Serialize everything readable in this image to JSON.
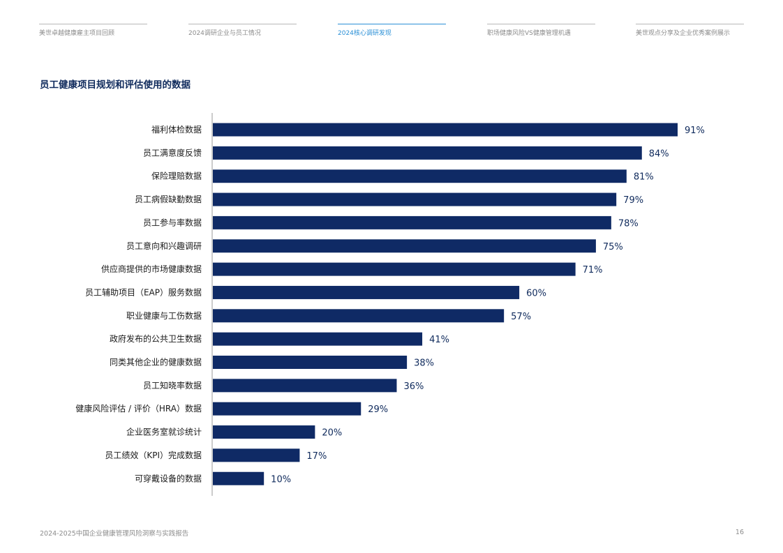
{
  "nav": {
    "tabs": [
      {
        "label": "美世卓越健康雇主项目回顾",
        "active": false
      },
      {
        "label": "2024调研企业与员工情况",
        "active": false
      },
      {
        "label": "2024核心调研发现",
        "active": true
      },
      {
        "label": "职场健康风险VS健康管理机遇",
        "active": false
      },
      {
        "label": "美世观点分享及企业优秀案例展示",
        "active": false
      }
    ]
  },
  "page": {
    "title": "员工健康项目规划和评估使用的数据",
    "footer": "2024-2025中国企业健康管理风险洞察与实践报告",
    "page_number": "16"
  },
  "colors": {
    "bar": "#0f2a65",
    "title": "#0f2a5c",
    "active_tab": "#2a8fd6",
    "muted_text": "#8c8c8c"
  },
  "chart_data": {
    "type": "bar",
    "orientation": "horizontal",
    "title": "员工健康项目规划和评估使用的数据",
    "categories": [
      "福利体检数据",
      "员工满意度反馈",
      "保险理赔数据",
      "员工病假缺勤数据",
      "员工参与率数据",
      "员工意向和兴趣调研",
      "供应商提供的市场健康数据",
      "员工辅助项目（EAP）服务数据",
      "职业健康与工伤数据",
      "政府发布的公共卫生数据",
      "同类其他企业的健康数据",
      "员工知晓率数据",
      "健康风险评估 / 评价（HRA）数据",
      "企业医务室就诊统计",
      "员工绩效（KPI）完成数据",
      "可穿戴设备的数据"
    ],
    "values": [
      91,
      84,
      81,
      79,
      78,
      75,
      71,
      60,
      57,
      41,
      38,
      36,
      29,
      20,
      17,
      10
    ],
    "value_labels": [
      "91%",
      "84%",
      "81%",
      "79%",
      "78%",
      "75%",
      "71%",
      "60%",
      "57%",
      "41%",
      "38%",
      "36%",
      "29%",
      "20%",
      "17%",
      "10%"
    ],
    "unit": "%",
    "xlim": [
      0,
      100
    ],
    "grid": false,
    "legend": false
  }
}
